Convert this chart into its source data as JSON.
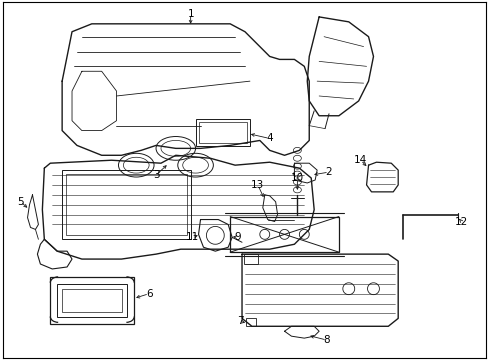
{
  "bg_color": "#ffffff",
  "line_color": "#1a1a1a",
  "text_color": "#000000",
  "fig_width": 4.89,
  "fig_height": 3.6,
  "dpi": 100,
  "label_fontsize": 7.5
}
